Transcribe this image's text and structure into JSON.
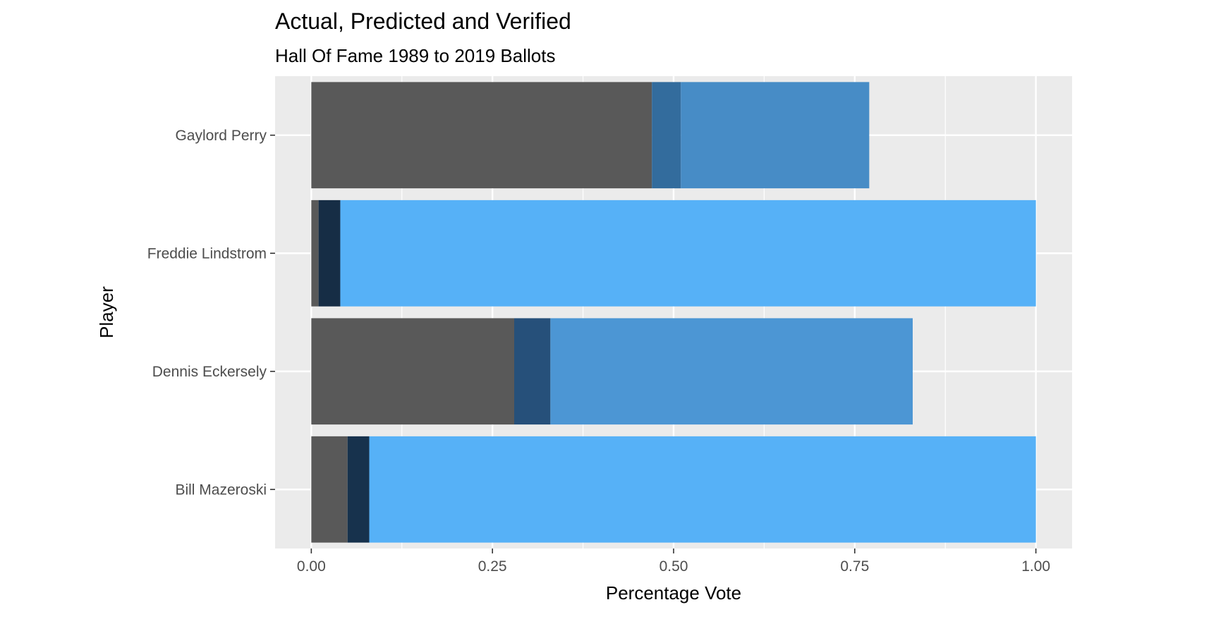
{
  "chart_data": {
    "type": "bar",
    "orientation": "horizontal",
    "stacked": true,
    "title": "Actual, Predicted and Verified",
    "subtitle": "Hall Of Fame 1989 to 2019 Ballots",
    "xlabel": "Percentage Vote",
    "ylabel": "Player",
    "xlim": [
      -0.05,
      1.05
    ],
    "x_ticks": [
      {
        "value": 0,
        "label": "0.00"
      },
      {
        "value": 0.25,
        "label": "0.25"
      },
      {
        "value": 0.5,
        "label": "0.50"
      },
      {
        "value": 0.75,
        "label": "0.75"
      },
      {
        "value": 1,
        "label": "1.00"
      }
    ],
    "grid": true,
    "legend": "none",
    "categories": [
      "Bill Mazeroski",
      "Dennis Eckersely",
      "Freddie Lindstrom",
      "Gaylord Perry"
    ],
    "series": [
      {
        "color": "#595959",
        "values": [
          0.05,
          0.28,
          0.01,
          0.47
        ]
      },
      {
        "colors": [
          "#17324d",
          "#26507a",
          "#162d45",
          "#336c9d"
        ],
        "values": [
          0.03,
          0.05,
          0.03,
          0.04
        ]
      },
      {
        "colors": [
          "#56b1f7",
          "#4c96d4",
          "#56b1f7",
          "#478cc6"
        ],
        "values": [
          0.92,
          0.5,
          0.96,
          0.26
        ]
      }
    ]
  }
}
